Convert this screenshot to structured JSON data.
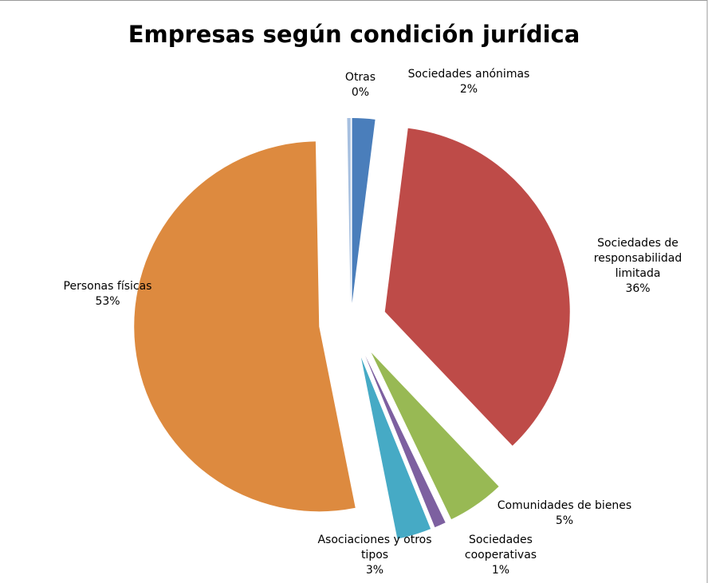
{
  "chart_data": {
    "type": "pie",
    "title": "Empresas según condición jurídica",
    "categories": [
      "Sociedades anónimas",
      "Sociedades de responsabilidad limitada",
      "Comunidades de bienes",
      "Sociedades cooperativas",
      "Asociaciones y otros tipos",
      "Personas físicas",
      "Otras"
    ],
    "values": [
      2,
      36,
      5,
      1,
      3,
      53,
      0.3
    ],
    "value_labels": [
      "2%",
      "36%",
      "5%",
      "1%",
      "3%",
      "53%",
      "0%"
    ],
    "colors": [
      "#4a7ebb",
      "#be4b48",
      "#98b954",
      "#7d60a0",
      "#46aac5",
      "#dd8a3f",
      "#a7c0e0"
    ]
  }
}
